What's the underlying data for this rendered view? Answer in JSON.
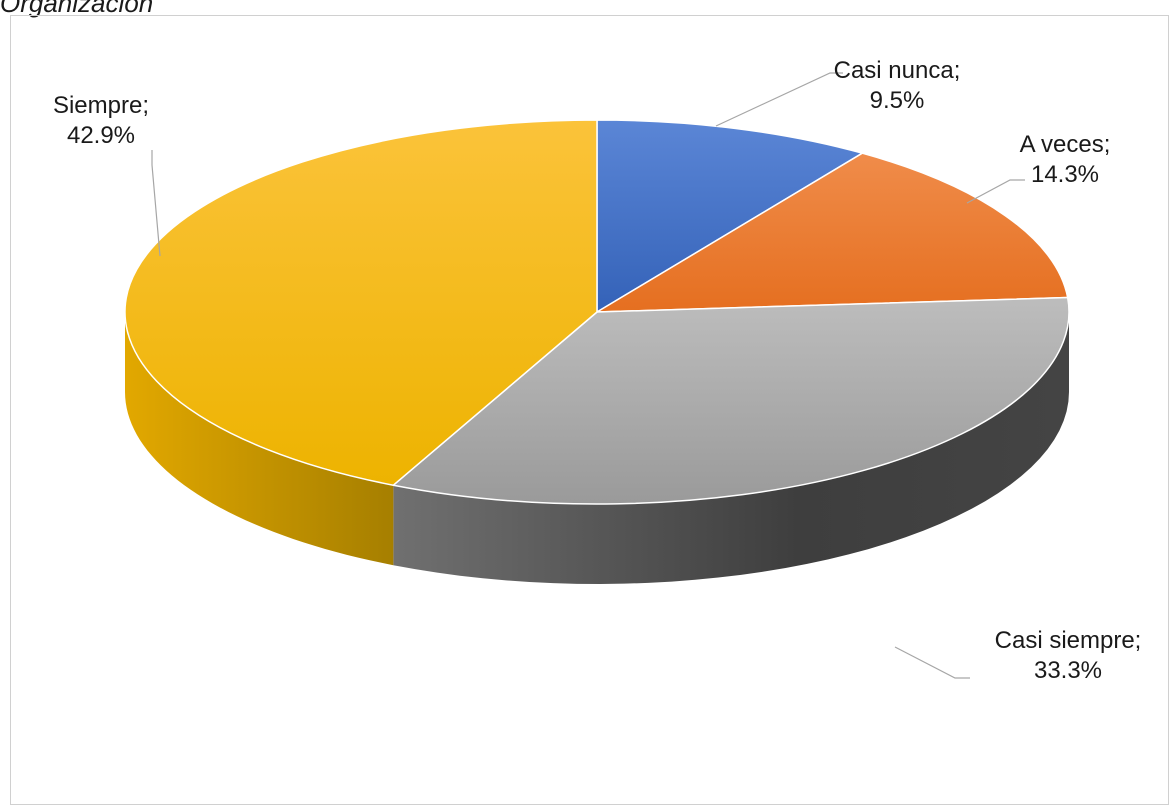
{
  "caption": "Organización",
  "chart_data": {
    "type": "pie",
    "style": "3d",
    "slices": [
      {
        "name": "Casi nunca",
        "label": "Casi nunca;",
        "value_label": "9.5%",
        "value": 9.5,
        "color": "#4472C4"
      },
      {
        "name": "A veces",
        "label": "A veces;",
        "value_label": "14.3%",
        "value": 14.3,
        "color": "#ED7D31"
      },
      {
        "name": "Casi siempre",
        "label": "Casi siempre;",
        "value_label": "33.3%",
        "value": 33.3,
        "color": "#A5A5A5"
      },
      {
        "name": "Siempre",
        "label": "Siempre;",
        "value_label": "42.9%",
        "value": 42.9,
        "color": "#FFC000"
      }
    ],
    "legend": "none"
  }
}
